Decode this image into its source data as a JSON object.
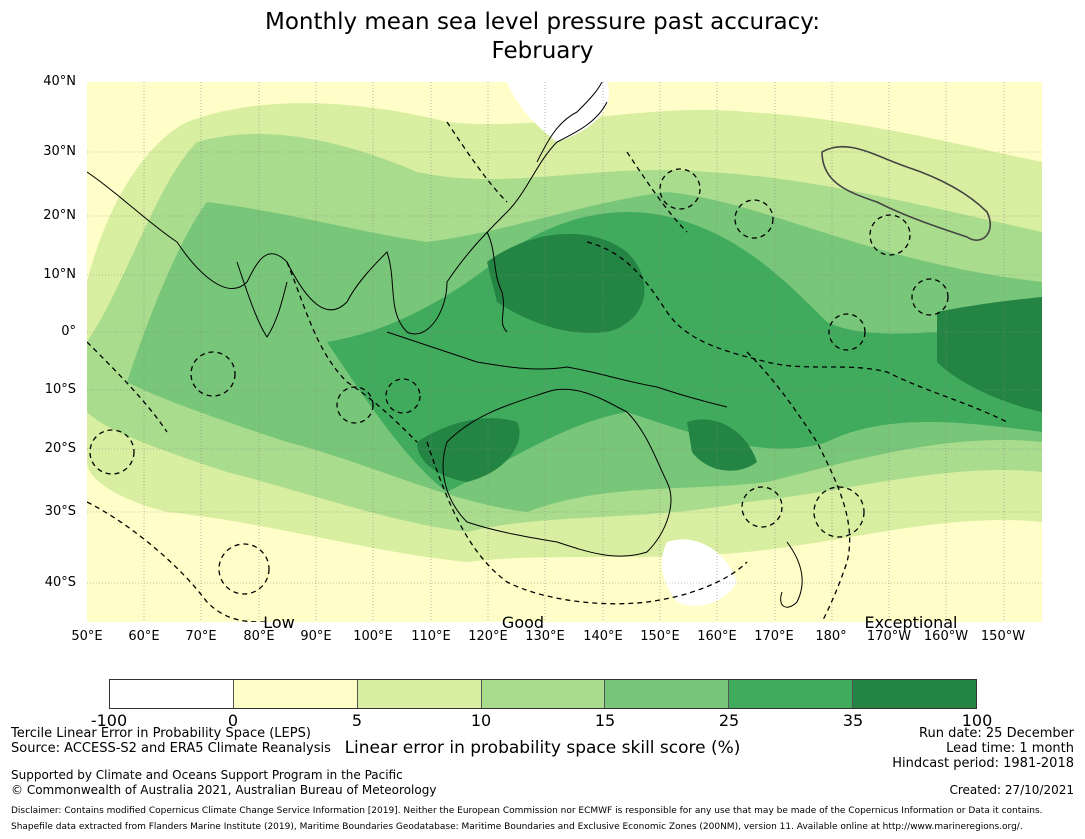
{
  "title_line1": "Monthly mean sea level pressure past accuracy:",
  "title_line2": "February",
  "map": {
    "lat_labels": [
      "40°N",
      "30°N",
      "20°N",
      "10°N",
      "0°",
      "10°S",
      "20°S",
      "30°S",
      "40°S"
    ],
    "lon_labels": [
      "50°E",
      "60°E",
      "70°E",
      "80°E",
      "90°E",
      "100°E",
      "110°E",
      "120°E",
      "130°E",
      "140°E",
      "150°E",
      "160°E",
      "170°E",
      "180°",
      "170°W",
      "160°W",
      "150°W"
    ],
    "category_labels": [
      "Low",
      "Good",
      "Exceptional"
    ]
  },
  "colorbar": {
    "ticks": [
      "-100",
      "0",
      "5",
      "10",
      "15",
      "25",
      "35",
      "100"
    ],
    "colors": [
      "#ffffff",
      "#fffec8",
      "#d8eea0",
      "#a9dc8c",
      "#78c679",
      "#41ab5d",
      "#238443"
    ],
    "label": "Linear error in probability space skill score (%)"
  },
  "footer": {
    "method": "Tercile Linear Error in Probability Space (LEPS)",
    "source": "Source: ACCESS-S2 and ERA5 Climate Reanalysis",
    "supported": "Supported by Climate and Oceans Support Program in the Pacific",
    "copyright": "© Commonwealth of Australia 2021, Australian Bureau of Meteorology",
    "run_date": "Run date: 25 December",
    "lead_time": "Lead time: 1 month",
    "hindcast": "Hindcast period: 1981-2018",
    "created": "Created: 27/10/2021",
    "disclaimer": "Disclaimer: Contains modified Copernicus Climate Change Service Information [2019]. Neither the European Commission nor ECMWF is responsible for any use that may be made of the Copernicus Information or Data it contains.",
    "shapefile": "Shapefile data extracted from Flanders Marine Institute (2019), Maritime Boundaries Geodatabase: Maritime Boundaries and Exclusive Economic Zones (200NM), version 11. Available online at http://www.marineregions.org/."
  }
}
